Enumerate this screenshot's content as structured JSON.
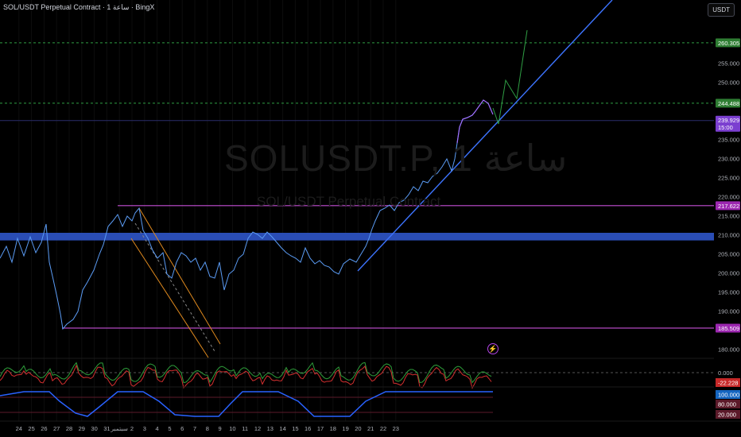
{
  "header": {
    "symbol_title": "SOL/USDT Perpetual Contract · 1 ساعة · BingX",
    "currency_button": "USDT"
  },
  "watermark": {
    "ticker": "SOLUSDT.P, 1 ساعة",
    "name": "SOL/USDT Perpetual Contract"
  },
  "price_axis": {
    "ticks": [
      "255.000",
      "250.000",
      "245.000",
      "235.000",
      "230.000",
      "225.000",
      "220.000",
      "215.000",
      "210.000",
      "205.000",
      "200.000",
      "195.000",
      "190.000",
      "180.000"
    ],
    "tags": [
      {
        "value": "260.305",
        "color": "#2e7d32"
      },
      {
        "value": "244.488",
        "color": "#2e7d32"
      },
      {
        "value": "239.929",
        "sub": "15:00",
        "color": "#7b3fd0"
      },
      {
        "value": "217.622",
        "color": "#9c27b0"
      },
      {
        "value": "185.509",
        "color": "#9c27b0"
      }
    ]
  },
  "oscillator_axis": {
    "ticks": [
      "0.000"
    ],
    "tags": [
      {
        "value": "-22.228",
        "color": "#c62828"
      }
    ]
  },
  "stoch_axis": {
    "tags": [
      {
        "value": "100.000",
        "color": "#1565c0"
      },
      {
        "value": "80.000",
        "color": "#5c1a2a"
      },
      {
        "value": "20.000",
        "color": "#5c1a2a"
      }
    ]
  },
  "time_axis": {
    "labels": [
      "24",
      "25",
      "26",
      "27",
      "28",
      "29",
      "30",
      "31",
      "سبتمبر",
      "2",
      "3",
      "4",
      "5",
      "6",
      "7",
      "8",
      "9",
      "10",
      "11",
      "12",
      "13",
      "14",
      "15",
      "16",
      "17",
      "18",
      "19",
      "20",
      "21",
      "22",
      "23"
    ]
  },
  "chart_data": {
    "type": "line",
    "title": "SOLUSDT.P, 1 ساعة",
    "series": [],
    "levels": [
      260.305,
      244.488,
      239.929,
      217.622,
      185.509
    ],
    "support_zone": [
      208.5,
      210.5
    ],
    "ylim": [
      177,
      268
    ]
  },
  "colors": {
    "price_line": "#5b9cf5",
    "recent_line": "#a070ff",
    "projection": "#2f9e44",
    "trendline": "#3d74ff",
    "horizontal_level": "#c64fd6",
    "zone": "#2a4db5",
    "channel": "#e08a1e"
  }
}
